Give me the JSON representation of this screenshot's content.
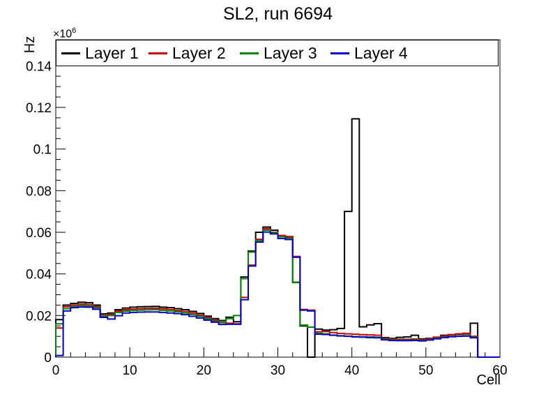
{
  "title": "SL2, run 6694",
  "axes": {
    "x_title": "Cell",
    "y_title": "Hz",
    "y_exponent_base": "×10",
    "y_exponent_power": "6"
  },
  "chart_data": {
    "type": "line",
    "subtype": "step-histogram",
    "title": "SL2, run 6694",
    "xlabel": "Cell",
    "ylabel": "Hz",
    "y_unit_multiplier": "×10^6",
    "xlim": [
      0,
      60
    ],
    "ylim": [
      0,
      0.1525
    ],
    "bin_width": 1,
    "grid": false,
    "legend_position": "top",
    "xticks": [
      0,
      10,
      20,
      30,
      40,
      50,
      60
    ],
    "xtick_labels": [
      "0",
      "10",
      "20",
      "30",
      "40",
      "50",
      "60"
    ],
    "x_minor_step": 2,
    "ytick_values": [
      0,
      0.02,
      0.04,
      0.06,
      0.08,
      0.1,
      0.12,
      0.14
    ],
    "ytick_labels": [
      "0",
      "0.02",
      "0.04",
      "0.06",
      "0.08",
      "0.1",
      "0.12",
      "0.14"
    ],
    "y_minor_step": 0.005,
    "frame_color": "#000000",
    "series": [
      {
        "name": "Layer 1",
        "color": "#000000",
        "values": [
          0.018,
          0.025,
          0.0258,
          0.0264,
          0.0262,
          0.025,
          0.0208,
          0.0212,
          0.0228,
          0.0236,
          0.024,
          0.0242,
          0.0243,
          0.0244,
          0.024,
          0.0238,
          0.0233,
          0.0228,
          0.022,
          0.021,
          0.0197,
          0.0185,
          0.0176,
          0.0192,
          0.017,
          0.0385,
          0.051,
          0.06,
          0.0625,
          0.061,
          0.058,
          0.0577,
          0.036,
          0.015,
          0.0,
          0.0135,
          0.013,
          0.0132,
          0.0138,
          0.07,
          0.1145,
          0.0146,
          0.0155,
          0.0161,
          0.0094,
          0.009,
          0.0095,
          0.0097,
          0.0105,
          0.0088,
          0.009,
          0.0096,
          0.0105,
          0.0108,
          0.011,
          0.0112,
          0.0163,
          0.0,
          0.0,
          0.0
        ]
      },
      {
        "name": "Layer 2",
        "color": "#cc0000",
        "values": [
          0.014,
          0.0242,
          0.025,
          0.0255,
          0.0253,
          0.0243,
          0.02,
          0.0205,
          0.0221,
          0.0228,
          0.0231,
          0.0233,
          0.0234,
          0.0235,
          0.0232,
          0.0229,
          0.0224,
          0.0219,
          0.0212,
          0.0202,
          0.019,
          0.0178,
          0.0166,
          0.0163,
          0.016,
          0.0287,
          0.0442,
          0.0566,
          0.0617,
          0.06,
          0.0585,
          0.058,
          0.0484,
          0.0229,
          0.0226,
          0.0122,
          0.0123,
          0.0118,
          0.0114,
          0.0112,
          0.011,
          0.0108,
          0.0107,
          0.0105,
          0.009,
          0.0087,
          0.0086,
          0.0086,
          0.0087,
          0.0085,
          0.0088,
          0.0095,
          0.0102,
          0.0108,
          0.0112,
          0.0115,
          0.01,
          0.0,
          0.0,
          0.0
        ]
      },
      {
        "name": "Layer 3",
        "color": "#008800",
        "values": [
          0.016,
          0.0233,
          0.0243,
          0.0248,
          0.0246,
          0.0237,
          0.0196,
          0.02,
          0.0214,
          0.0221,
          0.0224,
          0.0226,
          0.0227,
          0.0228,
          0.0225,
          0.0222,
          0.0218,
          0.0212,
          0.0205,
          0.0196,
          0.0184,
          0.0172,
          0.0168,
          0.0185,
          0.02,
          0.0377,
          0.0505,
          0.056,
          0.061,
          0.0598,
          0.0578,
          0.0572,
          0.0358,
          0.0154,
          0.0144,
          0.0115,
          0.0112,
          0.0106,
          0.0103,
          0.0101,
          0.0099,
          0.0098,
          0.0097,
          0.0096,
          0.0086,
          0.0083,
          0.0082,
          0.0082,
          0.0083,
          0.0081,
          0.0084,
          0.009,
          0.0096,
          0.01,
          0.0102,
          0.0103,
          0.0095,
          0.0,
          0.0,
          0.0
        ]
      },
      {
        "name": "Layer 4",
        "color": "#0000cc",
        "values": [
          0.0008,
          0.0222,
          0.0238,
          0.0241,
          0.024,
          0.023,
          0.0191,
          0.0183,
          0.0199,
          0.0212,
          0.0215,
          0.0216,
          0.0217,
          0.0217,
          0.0215,
          0.0212,
          0.0209,
          0.0204,
          0.0196,
          0.0188,
          0.0178,
          0.0168,
          0.0157,
          0.0158,
          0.0158,
          0.0276,
          0.0438,
          0.0553,
          0.0601,
          0.0592,
          0.057,
          0.0565,
          0.048,
          0.0226,
          0.0222,
          0.011,
          0.0109,
          0.0105,
          0.0102,
          0.01,
          0.0097,
          0.0096,
          0.0094,
          0.0093,
          0.0083,
          0.008,
          0.0079,
          0.0079,
          0.008,
          0.0078,
          0.0082,
          0.0088,
          0.0094,
          0.0098,
          0.01,
          0.0101,
          0.0093,
          0.0,
          0.0,
          0.0
        ]
      }
    ]
  },
  "legend": {
    "entries": [
      "Layer 1",
      "Layer 2",
      "Layer 3",
      "Layer 4"
    ]
  }
}
